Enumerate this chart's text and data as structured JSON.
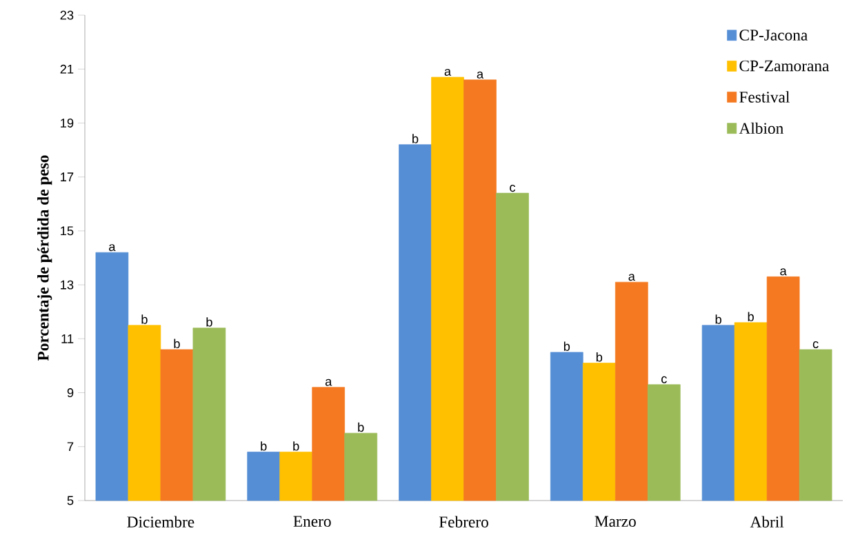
{
  "chart_data": {
    "type": "bar",
    "ylabel": "Porcentaje de pérdida de peso",
    "categories": [
      "Diciembre",
      "Enero",
      "Febrero",
      "Marzo",
      "Abril"
    ],
    "series": [
      {
        "name": "CP-Jacona",
        "color": "#558ed5",
        "values": [
          14.2,
          6.8,
          18.2,
          10.5,
          11.5
        ]
      },
      {
        "name": "CP-Zamorana",
        "color": "#ffc000",
        "values": [
          11.5,
          6.8,
          20.7,
          10.1,
          11.6
        ]
      },
      {
        "name": "Festival",
        "color": "#f47920",
        "values": [
          10.6,
          9.2,
          20.6,
          13.1,
          13.3
        ]
      },
      {
        "name": "Albion",
        "color": "#9bbb59",
        "values": [
          11.4,
          7.5,
          16.4,
          9.3,
          10.6
        ]
      }
    ],
    "ylim": [
      5,
      23
    ],
    "yticks": [
      5,
      7,
      9,
      11,
      13,
      15,
      17,
      19,
      21,
      23
    ],
    "legend": "top right",
    "grid": false,
    "annotations": [
      "a",
      "b",
      "b",
      "b",
      "b",
      "b",
      "a",
      "b",
      "b",
      "a",
      "a",
      "c",
      "b",
      "b",
      "a",
      "c",
      "b",
      "b",
      "a",
      "c"
    ]
  }
}
